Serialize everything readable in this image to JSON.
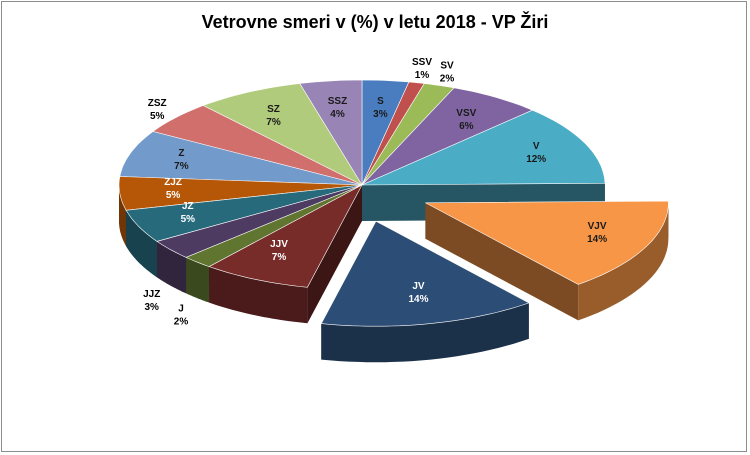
{
  "chart_data": {
    "type": "pie",
    "title": "Vetrovne smeri  v (%) v letu 2018 - VP Žiri",
    "slices": [
      {
        "name": "S",
        "value": 3,
        "pct_label": "3%",
        "color": "#4a7dbf"
      },
      {
        "name": "SSV",
        "value": 1,
        "pct_label": "1%",
        "color": "#c0504d"
      },
      {
        "name": "SV",
        "value": 2,
        "pct_label": "2%",
        "color": "#9bbb59"
      },
      {
        "name": "VSV",
        "value": 6,
        "pct_label": "6%",
        "color": "#8064a2"
      },
      {
        "name": "V",
        "value": 12,
        "pct_label": "12%",
        "color": "#4bacc6"
      },
      {
        "name": "VJV",
        "value": 14,
        "pct_label": "14%",
        "color": "#f79646"
      },
      {
        "name": "JV",
        "value": 14,
        "pct_label": "14%",
        "color": "#2c4d75"
      },
      {
        "name": "JJV",
        "value": 7,
        "pct_label": "7%",
        "color": "#772c2a"
      },
      {
        "name": "J",
        "value": 2,
        "pct_label": "2%",
        "color": "#5f7530"
      },
      {
        "name": "JJZ",
        "value": 3,
        "pct_label": "3%",
        "color": "#4d3b62"
      },
      {
        "name": "JZ",
        "value": 5,
        "pct_label": "5%",
        "color": "#276a7c"
      },
      {
        "name": "ZJZ",
        "value": 5,
        "pct_label": "5%",
        "color": "#b65708"
      },
      {
        "name": "Z",
        "value": 7,
        "pct_label": "7%",
        "color": "#729aca"
      },
      {
        "name": "ZSZ",
        "value": 5,
        "pct_label": "5%",
        "color": "#d16f6c"
      },
      {
        "name": "SZ",
        "value": 7,
        "pct_label": "7%",
        "color": "#b0cb7c"
      },
      {
        "name": "SSZ",
        "value": 4,
        "pct_label": "4%",
        "color": "#9884b5"
      }
    ]
  }
}
